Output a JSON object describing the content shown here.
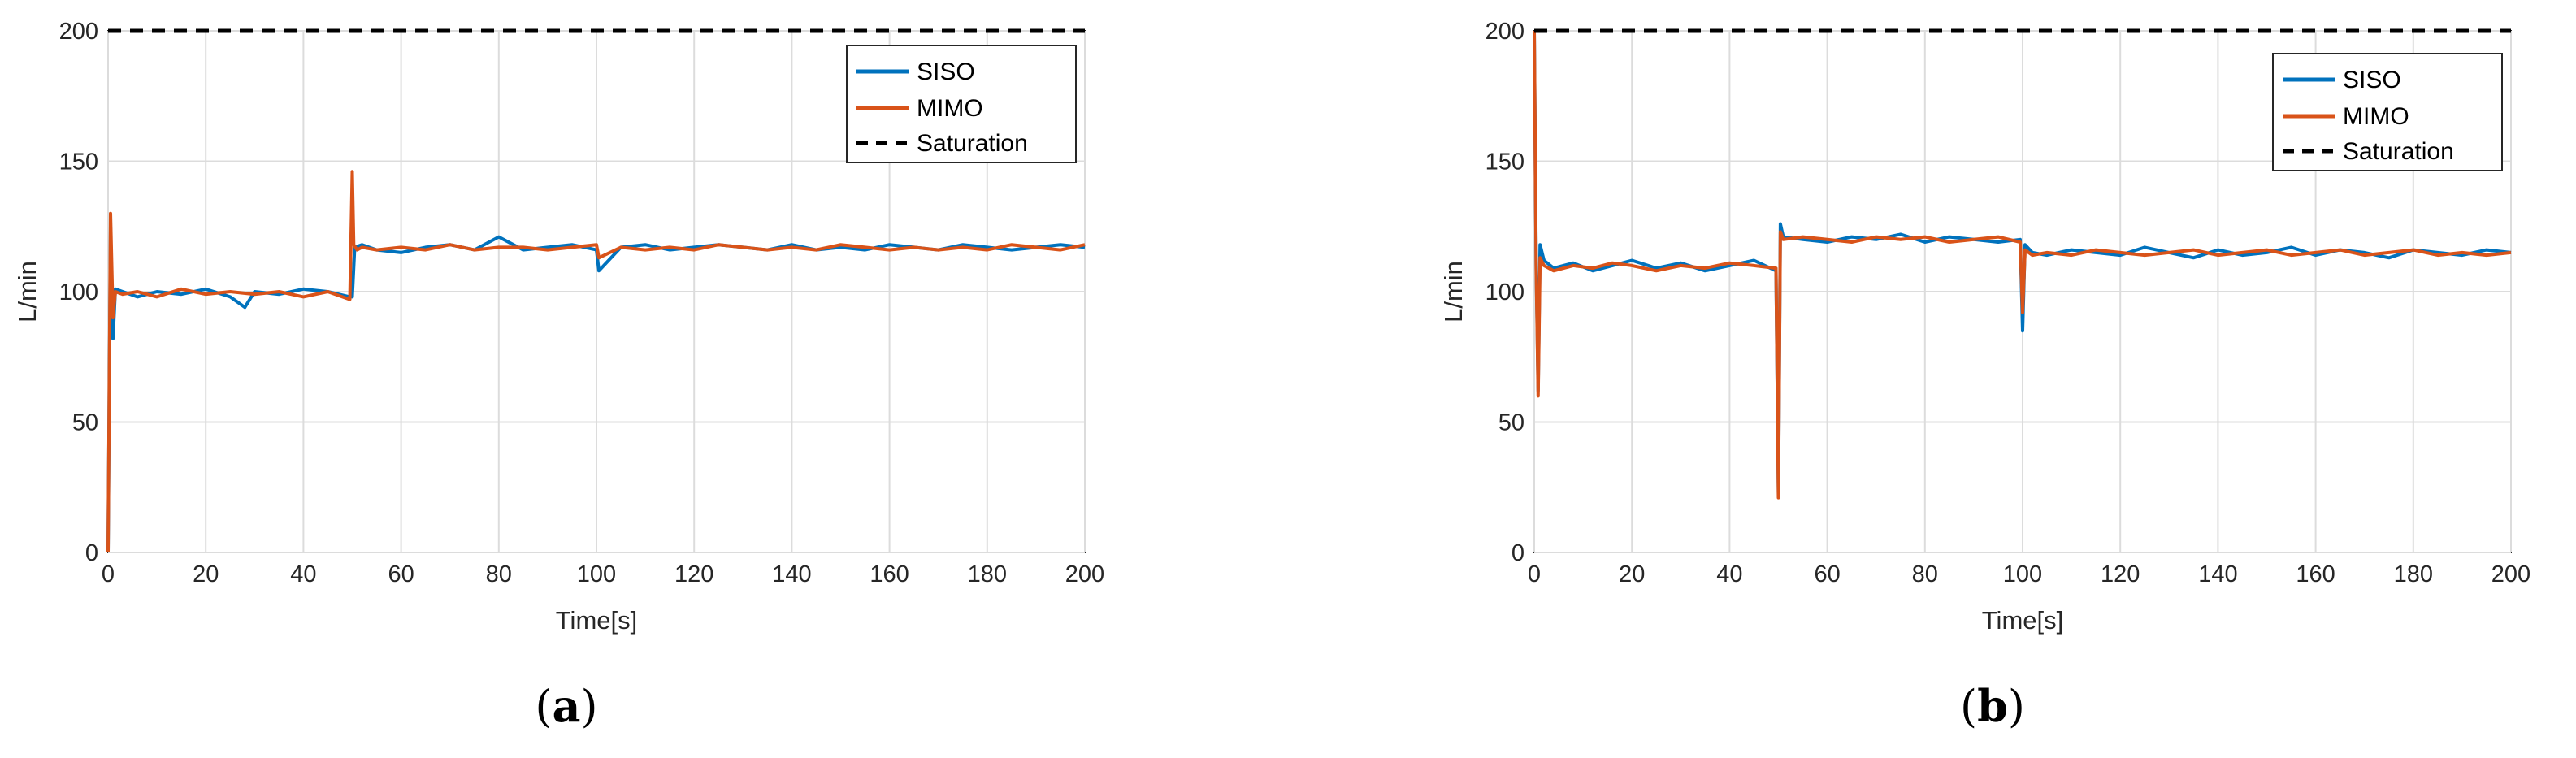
{
  "chart_data": [
    {
      "type": "line",
      "caption": {
        "open": "(",
        "letter": "a",
        "close": ")"
      },
      "xlabel": "Time[s]",
      "ylabel": "L/min",
      "xlim": [
        0,
        200
      ],
      "ylim": [
        0,
        200
      ],
      "xticks": [
        "0",
        "20",
        "40",
        "60",
        "80",
        "100",
        "120",
        "140",
        "160",
        "180",
        "200"
      ],
      "yticks": [
        "0",
        "50",
        "100",
        "150",
        "200"
      ],
      "grid": true,
      "legend_position": "top-right",
      "series": [
        {
          "name": "SISO",
          "color": "#0072BD",
          "style": "solid",
          "x": [
            0,
            0.5,
            1,
            1.5,
            3,
            6,
            10,
            15,
            20,
            25,
            28,
            30,
            35,
            40,
            45,
            49.5,
            50,
            50.5,
            52,
            55,
            60,
            65,
            70,
            75,
            80,
            85,
            90,
            95,
            100,
            100.5,
            105,
            110,
            115,
            120,
            125,
            130,
            135,
            140,
            145,
            150,
            155,
            160,
            165,
            170,
            175,
            180,
            185,
            190,
            195,
            200
          ],
          "y": [
            0,
            125,
            82,
            101,
            100,
            98,
            100,
            99,
            101,
            98,
            94,
            100,
            99,
            101,
            100,
            98,
            98,
            117,
            118,
            116,
            115,
            117,
            118,
            116,
            121,
            116,
            117,
            118,
            116,
            108,
            117,
            118,
            116,
            117,
            118,
            117,
            116,
            118,
            116,
            117,
            116,
            118,
            117,
            116,
            118,
            117,
            116,
            117,
            118,
            117
          ]
        },
        {
          "name": "MIMO",
          "color": "#D95319",
          "style": "solid",
          "x": [
            0,
            0.5,
            1,
            1.5,
            3,
            6,
            10,
            15,
            20,
            25,
            30,
            35,
            40,
            45,
            49.5,
            50,
            50.3,
            51,
            52,
            55,
            60,
            65,
            70,
            75,
            80,
            85,
            90,
            95,
            100,
            100.5,
            105,
            110,
            115,
            120,
            125,
            130,
            135,
            140,
            145,
            150,
            155,
            160,
            165,
            170,
            175,
            180,
            185,
            190,
            195,
            200
          ],
          "y": [
            0,
            130,
            90,
            100,
            99,
            100,
            98,
            101,
            99,
            100,
            99,
            100,
            98,
            100,
            97,
            146,
            118,
            116,
            117,
            116,
            117,
            116,
            118,
            116,
            117,
            117,
            116,
            117,
            118,
            113,
            117,
            116,
            117,
            116,
            118,
            117,
            116,
            117,
            116,
            118,
            117,
            116,
            117,
            116,
            117,
            116,
            118,
            117,
            116,
            118
          ]
        },
        {
          "name": "Saturation",
          "color": "#000000",
          "style": "dashed",
          "x": [
            0,
            200
          ],
          "y": [
            200,
            200
          ]
        }
      ]
    },
    {
      "type": "line",
      "caption": {
        "open": "(",
        "letter": "b",
        "close": ")"
      },
      "xlabel": "Time[s]",
      "ylabel": "L/min",
      "xlim": [
        0,
        200
      ],
      "ylim": [
        0,
        200
      ],
      "xticks": [
        "0",
        "20",
        "40",
        "60",
        "80",
        "100",
        "120",
        "140",
        "160",
        "180",
        "200"
      ],
      "yticks": [
        "0",
        "50",
        "100",
        "150",
        "200"
      ],
      "grid": true,
      "legend_position": "top-right",
      "series": [
        {
          "name": "SISO",
          "color": "#0072BD",
          "style": "solid",
          "x": [
            0,
            0.4,
            0.8,
            1.2,
            2,
            4,
            8,
            12,
            16,
            20,
            25,
            30,
            35,
            40,
            45,
            49.5,
            50,
            50.4,
            51,
            55,
            60,
            65,
            70,
            75,
            80,
            85,
            90,
            95,
            99.5,
            100,
            100.5,
            102,
            105,
            110,
            115,
            120,
            125,
            130,
            135,
            140,
            145,
            150,
            155,
            160,
            165,
            170,
            175,
            180,
            185,
            190,
            195,
            200
          ],
          "y": [
            200,
            110,
            62,
            118,
            112,
            109,
            111,
            108,
            110,
            112,
            109,
            111,
            108,
            110,
            112,
            108,
            22,
            126,
            121,
            120,
            119,
            121,
            120,
            122,
            119,
            121,
            120,
            119,
            120,
            85,
            118,
            115,
            114,
            116,
            115,
            114,
            117,
            115,
            113,
            116,
            114,
            115,
            117,
            114,
            116,
            115,
            113,
            116,
            115,
            114,
            116,
            115
          ]
        },
        {
          "name": "MIMO",
          "color": "#D95319",
          "style": "solid",
          "x": [
            0,
            0.4,
            0.8,
            1.2,
            2,
            4,
            8,
            12,
            16,
            20,
            25,
            30,
            35,
            40,
            45,
            49.5,
            50,
            50.4,
            51,
            55,
            60,
            65,
            70,
            75,
            80,
            85,
            90,
            95,
            99.5,
            100,
            100.5,
            102,
            105,
            110,
            115,
            120,
            125,
            130,
            135,
            140,
            145,
            150,
            155,
            160,
            165,
            170,
            175,
            180,
            185,
            190,
            195,
            200
          ],
          "y": [
            200,
            108,
            60,
            113,
            110,
            108,
            110,
            109,
            111,
            110,
            108,
            110,
            109,
            111,
            110,
            109,
            21,
            123,
            120,
            121,
            120,
            119,
            121,
            120,
            121,
            119,
            120,
            121,
            119,
            92,
            116,
            114,
            115,
            114,
            116,
            115,
            114,
            115,
            116,
            114,
            115,
            116,
            114,
            115,
            116,
            114,
            115,
            116,
            114,
            115,
            114,
            115
          ]
        },
        {
          "name": "Saturation",
          "color": "#000000",
          "style": "dashed",
          "x": [
            0,
            200
          ],
          "y": [
            200,
            200
          ]
        }
      ]
    }
  ]
}
